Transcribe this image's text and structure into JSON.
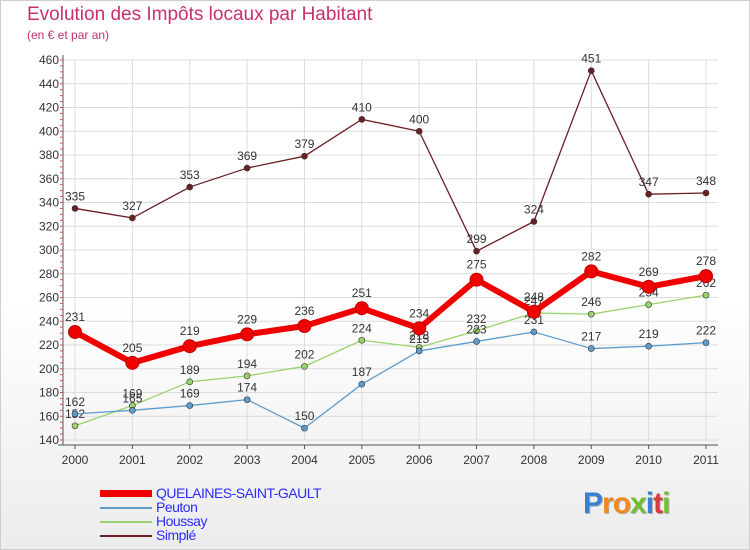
{
  "title": "Evolution des Impôts locaux par Habitant",
  "subtitle": "(en € et par an)",
  "logo": {
    "letters": [
      {
        "ch": "P",
        "color": "#3a7fd0"
      },
      {
        "ch": "r",
        "color": "#f08a1c"
      },
      {
        "ch": "o",
        "color": "#f08a1c"
      },
      {
        "ch": "x",
        "color": "#6fbf2f"
      },
      {
        "ch": "i",
        "color": "#3a7fd0"
      },
      {
        "ch": "t",
        "color": "#d63b3b"
      },
      {
        "ch": "i",
        "color": "#6fbf2f"
      }
    ]
  },
  "chart_data": {
    "type": "line",
    "title": "Evolution des Impôts locaux par Habitant",
    "subtitle": "(en € et par an)",
    "xlabel": "",
    "ylabel": "",
    "ylim": [
      140,
      460
    ],
    "yticks": [
      140,
      160,
      180,
      200,
      220,
      240,
      260,
      280,
      300,
      320,
      340,
      360,
      380,
      400,
      420,
      440,
      460
    ],
    "categories": [
      "2000",
      "2001",
      "2002",
      "2003",
      "2004",
      "2005",
      "2006",
      "2007",
      "2008",
      "2009",
      "2010",
      "2011"
    ],
    "grid": true,
    "legend_position": "bottom-left",
    "series": [
      {
        "name": "Simplé",
        "color": "#6b1f24",
        "values": [
          335,
          327,
          353,
          369,
          379,
          410,
          400,
          299,
          324,
          451,
          347,
          348
        ]
      },
      {
        "name": "Houssay",
        "color": "#9ad36a",
        "values": [
          152,
          169,
          189,
          194,
          202,
          224,
          218,
          232,
          247,
          246,
          254,
          262
        ]
      },
      {
        "name": "Peuton",
        "color": "#5e9ccc",
        "values": [
          162,
          165,
          169,
          174,
          150,
          187,
          215,
          223,
          231,
          217,
          219,
          222
        ]
      },
      {
        "name": "QUELAINES-SAINT-GAULT",
        "color": "#f00000",
        "values": [
          231,
          205,
          219,
          229,
          236,
          251,
          234,
          275,
          248,
          282,
          269,
          278
        ]
      }
    ]
  },
  "legend": [
    {
      "label": "QUELAINES-SAINT-GAULT",
      "color": "#f00000",
      "text_color": "#2b2bff",
      "thick": true
    },
    {
      "label": "Peuton",
      "color": "#5e9ccc",
      "text_color": "#2b2bff",
      "thick": false
    },
    {
      "label": "Houssay",
      "color": "#9ad36a",
      "text_color": "#2b2bff",
      "thick": false
    },
    {
      "label": "Simplé",
      "color": "#6b1f24",
      "text_color": "#2b2bff",
      "thick": false
    }
  ]
}
